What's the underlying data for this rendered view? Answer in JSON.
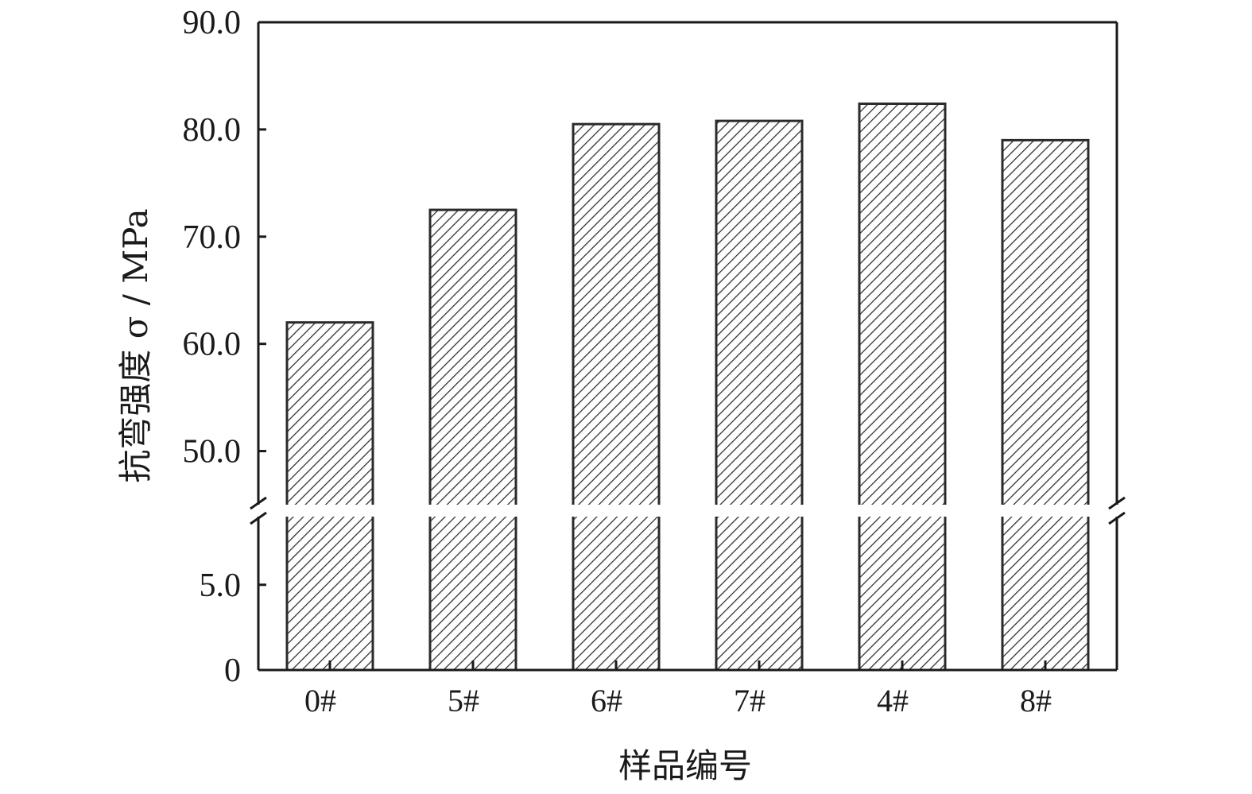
{
  "chart_data": {
    "type": "bar",
    "categories": [
      "0#",
      "5#",
      "6#",
      "7#",
      "4#",
      "8#"
    ],
    "values": [
      62.0,
      72.5,
      80.5,
      80.8,
      82.4,
      79.0
    ],
    "xlabel": "样品编号",
    "ylabel": "抗弯强度 σ / MPa",
    "ylim": [
      0,
      90.0
    ],
    "axis_break": [
      9.0,
      45.0
    ],
    "y_ticks_upper": [
      "50.0",
      "60.0",
      "70.0",
      "80.0",
      "90.0"
    ],
    "y_ticks_lower": [
      "0",
      "5.0"
    ],
    "bar_pattern": "diagonal-hatch",
    "grid": false,
    "legend": "none"
  }
}
